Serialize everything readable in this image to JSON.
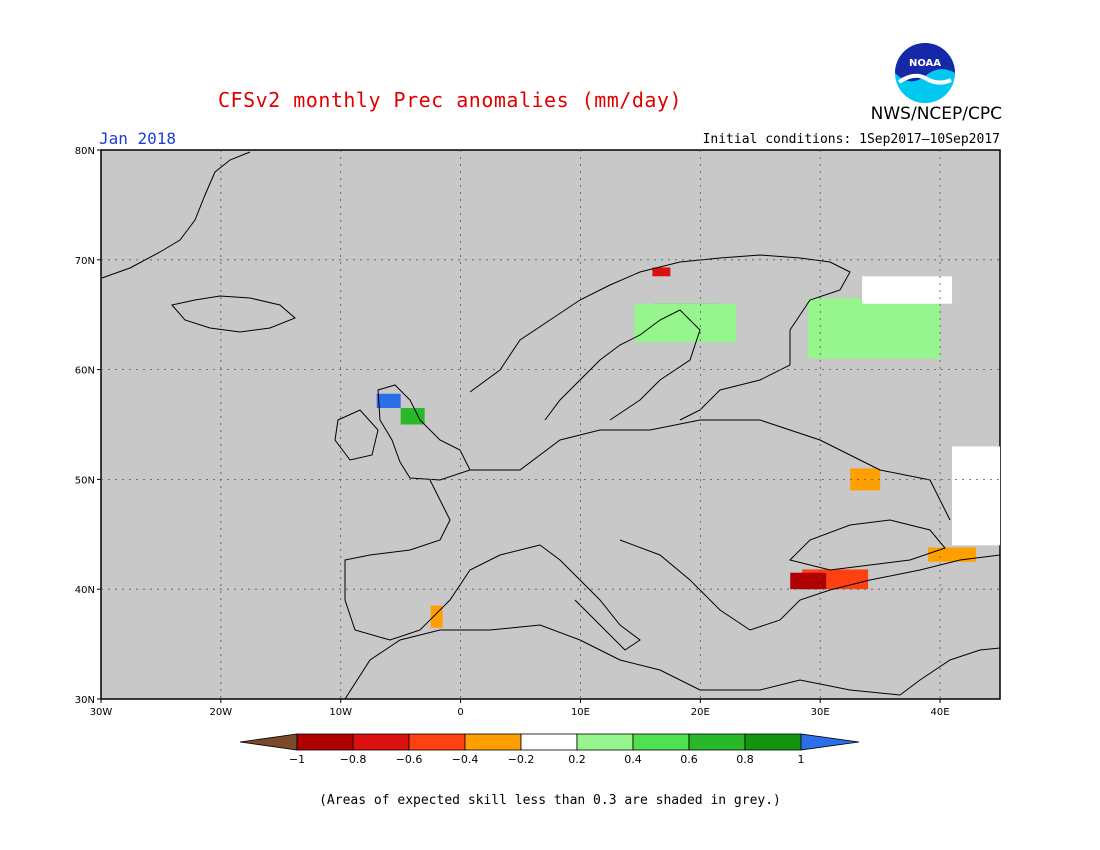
{
  "title": "CFSv2 monthly Prec anomalies (mm/day)",
  "agency": "NWS/NCEP/CPC",
  "logo_text": "NOAA",
  "target_month": "Jan 2018",
  "initial_conditions": "Initial conditions: 1Sep2017—10Sep2017",
  "footnote": "(Areas of expected skill less than 0.3 are shaded in grey.)",
  "map": {
    "lon_range": [
      -30,
      45
    ],
    "lat_range": [
      30,
      80
    ],
    "lat_ticks": [
      {
        "value": 80,
        "label": "80N"
      },
      {
        "value": 70,
        "label": "70N"
      },
      {
        "value": 60,
        "label": "60N"
      },
      {
        "value": 50,
        "label": "50N"
      },
      {
        "value": 40,
        "label": "40N"
      },
      {
        "value": 30,
        "label": "30N"
      }
    ],
    "lon_ticks": [
      {
        "value": -30,
        "label": "30W"
      },
      {
        "value": -20,
        "label": "20W"
      },
      {
        "value": -10,
        "label": "10W"
      },
      {
        "value": 0,
        "label": "0"
      },
      {
        "value": 10,
        "label": "10E"
      },
      {
        "value": 20,
        "label": "20E"
      },
      {
        "value": 30,
        "label": "30E"
      },
      {
        "value": 40,
        "label": "40E"
      }
    ],
    "grid_lines": true,
    "background_color": "#c8c8c8"
  },
  "colorbar": {
    "ticks": [
      "−1",
      "−0.8",
      "−0.6",
      "−0.4",
      "−0.2",
      "0.2",
      "0.4",
      "0.6",
      "0.8",
      "1"
    ],
    "colors": [
      "#7a4a2a",
      "#b00000",
      "#dd1010",
      "#ff4010",
      "#ffa000",
      "#ffffff",
      "#96f58c",
      "#50e050",
      "#28b828",
      "#129612",
      "#2a6ee8"
    ]
  },
  "anomaly_areas": [
    {
      "region": "northern-norway",
      "color": "#dd1010",
      "lon": [
        16,
        17.5
      ],
      "lat": [
        68.5,
        69.3
      ]
    },
    {
      "region": "scotland-west",
      "color": "#2a6ee8",
      "lon": [
        -7,
        -5
      ],
      "lat": [
        56.5,
        57.8
      ]
    },
    {
      "region": "scotland-south",
      "color": "#28b828",
      "lon": [
        -5,
        -3
      ],
      "lat": [
        55,
        56.5
      ]
    },
    {
      "region": "sweden-north",
      "color": "#28b828",
      "lon": [
        16,
        21.5
      ],
      "lat": [
        63.5,
        66
      ]
    },
    {
      "region": "sweden-north-fringe",
      "color": "#96f58c",
      "lon": [
        14.5,
        23
      ],
      "lat": [
        62.5,
        66
      ]
    },
    {
      "region": "north-russia",
      "color": "#96f58c",
      "lon": [
        29,
        40
      ],
      "lat": [
        61,
        66.5
      ]
    },
    {
      "region": "barents-white",
      "color": "#ffffff",
      "lon": [
        33.5,
        41
      ],
      "lat": [
        66,
        68.5
      ]
    },
    {
      "region": "ukraine-east",
      "color": "#ffa000",
      "lon": [
        32.5,
        35
      ],
      "lat": [
        49,
        51
      ]
    },
    {
      "region": "caucasus",
      "color": "#ffa000",
      "lon": [
        39,
        43
      ],
      "lat": [
        42.5,
        43.8
      ]
    },
    {
      "region": "turkey-north",
      "color": "#ff4010",
      "lon": [
        28.5,
        34
      ],
      "lat": [
        40,
        41.8
      ]
    },
    {
      "region": "marmara",
      "color": "#b00000",
      "lon": [
        27.5,
        30.5
      ],
      "lat": [
        40,
        41.5
      ]
    },
    {
      "region": "spain-south",
      "color": "#ffa000",
      "lon": [
        -2.5,
        -1.5
      ],
      "lat": [
        36.5,
        38.5
      ]
    },
    {
      "region": "east-white",
      "color": "#ffffff",
      "lon": [
        41,
        45
      ],
      "lat": [
        44,
        53
      ]
    }
  ]
}
